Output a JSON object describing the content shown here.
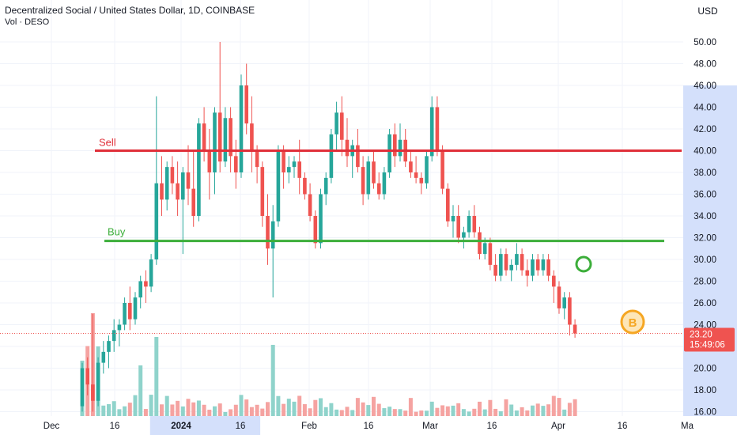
{
  "header": {
    "title": "Decentralized Social / United States Dollar, 1D, COINBASE",
    "subtitle": "Vol · DESO"
  },
  "currency_button": "USD",
  "price_tag": {
    "price": "23.20",
    "countdown": "15:49:06"
  },
  "annotations": {
    "sell_label": "Sell",
    "buy_label": "Buy",
    "marker_letter": "B"
  },
  "colors": {
    "up": "#26a69a",
    "down": "#ef5350",
    "up_vol": "#8fd3cb",
    "down_vol": "#f5a3a1",
    "sell_line": "#e0303a",
    "buy_line": "#3cae3a",
    "marker_orange": "#f5a623",
    "marker_green": "#3cae3a",
    "axis_highlight": "#d4e0fb",
    "price_tag": "#ef5350"
  },
  "chart_data": {
    "type": "candlestick",
    "title": "Decentralized Social / United States Dollar, 1D, COINBASE",
    "y_axis": {
      "min": 16,
      "max": 50,
      "ticks": [
        "16.00",
        "18.00",
        "20.00",
        "22.00",
        "24.00",
        "26.00",
        "28.00",
        "30.00",
        "32.00",
        "34.00",
        "36.00",
        "38.00",
        "40.00",
        "42.00",
        "44.00",
        "46.00",
        "48.00",
        "50.00"
      ],
      "highlight_range": [
        16,
        46
      ]
    },
    "x_axis": {
      "labels": [
        "Dec",
        "16",
        "2024",
        "16",
        "Feb",
        "16",
        "Mar",
        "16",
        "Apr",
        "16",
        "Ma"
      ],
      "highlight_range_days": [
        14,
        33
      ]
    },
    "horizontal_lines": [
      {
        "name": "Sell",
        "value": 40.0,
        "from_day": 0,
        "to_day": 89
      },
      {
        "name": "Buy",
        "value": 31.7,
        "from_day": 1,
        "to_day": 89
      }
    ],
    "last_price": 23.2,
    "candles_ohlc": [
      [
        16.5,
        20.5,
        16,
        20
      ],
      [
        20,
        21,
        17.5,
        18.5
      ],
      [
        18.5,
        25,
        16,
        17
      ],
      [
        17,
        21,
        16.5,
        20.5
      ],
      [
        20.5,
        22.5,
        19.5,
        21.5
      ],
      [
        21.5,
        23,
        20,
        22.5
      ],
      [
        22.5,
        24.5,
        21.5,
        23.5
      ],
      [
        23.5,
        24.5,
        22,
        24
      ],
      [
        24,
        26.5,
        23.5,
        26
      ],
      [
        26,
        27.5,
        23.5,
        24.5
      ],
      [
        24.5,
        27,
        24,
        26.5
      ],
      [
        26.5,
        28.5,
        25.5,
        28
      ],
      [
        28,
        29,
        26,
        27.5
      ],
      [
        27.5,
        30.5,
        27,
        30
      ],
      [
        30,
        45,
        29.5,
        37
      ],
      [
        37,
        39.5,
        34,
        35.5
      ],
      [
        35.5,
        39,
        34.5,
        38.5
      ],
      [
        38.5,
        39.5,
        36,
        37
      ],
      [
        37,
        39,
        34,
        35.5
      ],
      [
        35.5,
        38.5,
        30.5,
        38
      ],
      [
        38,
        40.5,
        35,
        36.5
      ],
      [
        36.5,
        40,
        33,
        34
      ],
      [
        34,
        43,
        33.5,
        42.5
      ],
      [
        42.5,
        44,
        39,
        40
      ],
      [
        40,
        42,
        35.5,
        38
      ],
      [
        38,
        44,
        36,
        43.5
      ],
      [
        43.5,
        50,
        38,
        39
      ],
      [
        39,
        44,
        38.5,
        43
      ],
      [
        43,
        44,
        38,
        39.5
      ],
      [
        39.5,
        41,
        36.5,
        38
      ],
      [
        38,
        47,
        37.5,
        46
      ],
      [
        46,
        48,
        41.5,
        42.5
      ],
      [
        42.5,
        45,
        38,
        40
      ],
      [
        40,
        40.5,
        37,
        38.5
      ],
      [
        38.5,
        39,
        33,
        34
      ],
      [
        34,
        36,
        29.5,
        31
      ],
      [
        31,
        35,
        26.5,
        33.5
      ],
      [
        33.5,
        40.5,
        33,
        40
      ],
      [
        40,
        40.5,
        36.5,
        38
      ],
      [
        38,
        39.5,
        37,
        38.5
      ],
      [
        38.5,
        39.5,
        37.5,
        39
      ],
      [
        39,
        41,
        36,
        37.5
      ],
      [
        37.5,
        38,
        35.5,
        36
      ],
      [
        36,
        37,
        33.5,
        34
      ],
      [
        34,
        34.5,
        31,
        31.5
      ],
      [
        31.5,
        36.5,
        31,
        36
      ],
      [
        36,
        38,
        35,
        37.5
      ],
      [
        37.5,
        42,
        37,
        41.5
      ],
      [
        41.5,
        44.5,
        40,
        43.5
      ],
      [
        43.5,
        45,
        39.5,
        41
      ],
      [
        41,
        43,
        38.5,
        39.5
      ],
      [
        39.5,
        41,
        37.5,
        40.5
      ],
      [
        40.5,
        42,
        38,
        38.5
      ],
      [
        38.5,
        39.5,
        35,
        36
      ],
      [
        36,
        39.5,
        35.5,
        39
      ],
      [
        39,
        40,
        36.5,
        37
      ],
      [
        37,
        38,
        35.5,
        36
      ],
      [
        36,
        38.5,
        35.5,
        38
      ],
      [
        38,
        42,
        37.5,
        41.5
      ],
      [
        41.5,
        42.5,
        38.5,
        39.5
      ],
      [
        39.5,
        42.5,
        39,
        41
      ],
      [
        41,
        42,
        38.5,
        39
      ],
      [
        39,
        40,
        37.5,
        38
      ],
      [
        38,
        39.5,
        37,
        37.5
      ],
      [
        37.5,
        38,
        36,
        37
      ],
      [
        37,
        40,
        36.5,
        39.5
      ],
      [
        39.5,
        45,
        39,
        44
      ],
      [
        44,
        45,
        39.5,
        40
      ],
      [
        40,
        40.5,
        36,
        36.5
      ],
      [
        36.5,
        37,
        33,
        33.5
      ],
      [
        33.5,
        35,
        32,
        34
      ],
      [
        34,
        35,
        31.5,
        32
      ],
      [
        32,
        33,
        31,
        32.5
      ],
      [
        32.5,
        34.5,
        32,
        34
      ],
      [
        34,
        35,
        32,
        32.5
      ],
      [
        32.5,
        33,
        30,
        30.5
      ],
      [
        30.5,
        32,
        30,
        31.5
      ],
      [
        31.5,
        32,
        29,
        29.5
      ],
      [
        29.5,
        30.5,
        28,
        28.5
      ],
      [
        28.5,
        31,
        28,
        30.5
      ],
      [
        30.5,
        31,
        28.5,
        29
      ],
      [
        29,
        30,
        28,
        29.5
      ],
      [
        29.5,
        31.5,
        29,
        30.5
      ],
      [
        30.5,
        31,
        28.5,
        29
      ],
      [
        29,
        30,
        27.5,
        28.5
      ],
      [
        28.5,
        30.5,
        28,
        30
      ],
      [
        30,
        30.5,
        28.5,
        29
      ],
      [
        29,
        30.5,
        28.5,
        30
      ],
      [
        30,
        30.5,
        28,
        28.5
      ],
      [
        28.5,
        29,
        26,
        27.5
      ],
      [
        27.5,
        28,
        25,
        25.5
      ],
      [
        25.5,
        27,
        24.5,
        26.5
      ],
      [
        26.5,
        27,
        23,
        24
      ],
      [
        24,
        24.5,
        22.8,
        23.2
      ]
    ]
  }
}
